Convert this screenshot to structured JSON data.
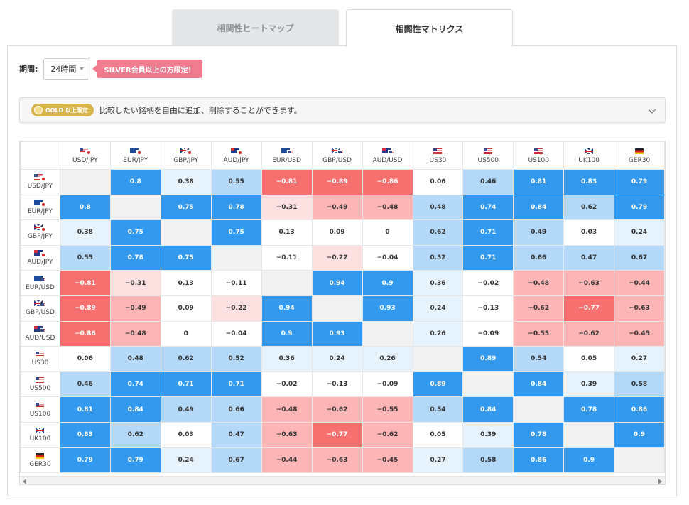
{
  "tabs": [
    {
      "label": "相関性ヒートマップ",
      "active": false
    },
    {
      "label": "相関性マトリクス",
      "active": true
    }
  ],
  "period": {
    "label": "期間:",
    "value": "24時間",
    "badge": "SILVER会員以上の方限定！"
  },
  "gold": {
    "badge": "GOLD 以上限定",
    "text": "比較したい銘柄を自由に追加、削除することができます。"
  },
  "colors": {
    "strong_pos": "#3399ee",
    "mid_pos": "#b3d8f8",
    "weak_pos": "#e6f2fc",
    "neutral": "#ffffff",
    "weak_neg": "#fde0e0",
    "mid_neg": "#fdb5b5",
    "strong_neg": "#f77070",
    "diag": "#f2f2f2"
  },
  "matrix": {
    "symbols": [
      "USD/JPY",
      "EUR/JPY",
      "GBP/JPY",
      "AUD/JPY",
      "EUR/USD",
      "GBP/USD",
      "AUD/USD",
      "US30",
      "US500",
      "US100",
      "UK100",
      "GER30"
    ],
    "flags": [
      [
        "us",
        "jp"
      ],
      [
        "eu",
        "jp"
      ],
      [
        "gb",
        "jp"
      ],
      [
        "au",
        "jp"
      ],
      [
        "eu",
        "us"
      ],
      [
        "gb",
        "us"
      ],
      [
        "au",
        "us"
      ],
      [
        "us"
      ],
      [
        "us"
      ],
      [
        "us"
      ],
      [
        "gb"
      ],
      [
        "de"
      ]
    ],
    "values": [
      [
        null,
        "0.8",
        "0.38",
        "0.55",
        "−0.81",
        "−0.89",
        "−0.86",
        "0.06",
        "0.46",
        "0.81",
        "0.83",
        "0.79"
      ],
      [
        "0.8",
        null,
        "0.75",
        "0.78",
        "−0.31",
        "−0.49",
        "−0.48",
        "0.48",
        "0.74",
        "0.84",
        "0.62",
        "0.79"
      ],
      [
        "0.38",
        "0.75",
        null,
        "0.75",
        "0.13",
        "0.09",
        "0",
        "0.62",
        "0.71",
        "0.49",
        "0.03",
        "0.24"
      ],
      [
        "0.55",
        "0.78",
        "0.75",
        null,
        "−0.11",
        "−0.22",
        "−0.04",
        "0.52",
        "0.71",
        "0.66",
        "0.47",
        "0.67"
      ],
      [
        "−0.81",
        "−0.31",
        "0.13",
        "−0.11",
        null,
        "0.94",
        "0.9",
        "0.36",
        "−0.02",
        "−0.48",
        "−0.63",
        "−0.44"
      ],
      [
        "−0.89",
        "−0.49",
        "0.09",
        "−0.22",
        "0.94",
        null,
        "0.93",
        "0.24",
        "−0.13",
        "−0.62",
        "−0.77",
        "−0.63"
      ],
      [
        "−0.86",
        "−0.48",
        "0",
        "−0.04",
        "0.9",
        "0.93",
        null,
        "0.26",
        "−0.09",
        "−0.55",
        "−0.62",
        "−0.45"
      ],
      [
        "0.06",
        "0.48",
        "0.62",
        "0.52",
        "0.36",
        "0.24",
        "0.26",
        null,
        "0.89",
        "0.54",
        "0.05",
        "0.27"
      ],
      [
        "0.46",
        "0.74",
        "0.71",
        "0.71",
        "−0.02",
        "−0.13",
        "−0.09",
        "0.89",
        null,
        "0.84",
        "0.39",
        "0.58"
      ],
      [
        "0.81",
        "0.84",
        "0.49",
        "0.66",
        "−0.48",
        "−0.62",
        "−0.55",
        "0.54",
        "0.84",
        null,
        "0.78",
        "0.86"
      ],
      [
        "0.83",
        "0.62",
        "0.03",
        "0.47",
        "−0.63",
        "−0.77",
        "−0.62",
        "0.05",
        "0.39",
        "0.78",
        null,
        "0.9"
      ],
      [
        "0.79",
        "0.79",
        "0.24",
        "0.67",
        "−0.44",
        "−0.63",
        "−0.45",
        "0.27",
        "0.58",
        "0.86",
        "0.9",
        null
      ]
    ]
  }
}
